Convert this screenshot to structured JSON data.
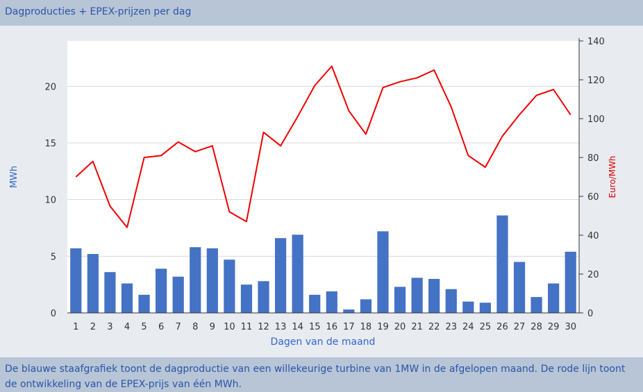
{
  "header": {
    "title": "Dagproducties + EPEX-prijzen per dag"
  },
  "footer": {
    "text": "De blauwe staafgrafiek toont de dagproductie van een willekeurige turbine van 1MW in de afgelopen maand. De rode lijn toont de ontwikkeling van de EPEX-prijs van één MWh."
  },
  "colors": {
    "bar": "#4472c4",
    "line": "#ee0000",
    "header_bg": "#b7c5d6",
    "panel_bg": "#e8ebf0",
    "left_axis_label": "#3366cc",
    "right_axis_label": "#dd0000"
  },
  "chart_data": {
    "type": "bar",
    "categories": [
      "1",
      "2",
      "3",
      "4",
      "5",
      "6",
      "7",
      "8",
      "9",
      "10",
      "11",
      "12",
      "13",
      "14",
      "15",
      "16",
      "17",
      "18",
      "19",
      "20",
      "21",
      "22",
      "23",
      "24",
      "25",
      "26",
      "27",
      "28",
      "29",
      "30"
    ],
    "xlabel": "Dagen van de maand",
    "ylabel": "MWh",
    "y2label": "Euro/MWh",
    "ylim": [
      0,
      24
    ],
    "y2lim": [
      0,
      140
    ],
    "yticks": [
      0,
      5,
      10,
      15,
      20
    ],
    "y2ticks": [
      0,
      20,
      40,
      60,
      80,
      100,
      120,
      140
    ],
    "grid": true,
    "series": [
      {
        "type": "bar",
        "axis": "left",
        "values": [
          5.7,
          5.2,
          3.6,
          2.6,
          1.6,
          3.9,
          3.2,
          5.8,
          5.7,
          4.7,
          2.5,
          2.8,
          6.6,
          6.9,
          1.6,
          1.9,
          0.3,
          1.2,
          7.2,
          2.3,
          3.1,
          3.0,
          2.1,
          1.0,
          0.9,
          8.6,
          4.5,
          1.4,
          2.6,
          5.4
        ]
      },
      {
        "type": "line",
        "axis": "right",
        "values": [
          70,
          78,
          55,
          44,
          80,
          81,
          88,
          83,
          86,
          52,
          47,
          93,
          86,
          101,
          117,
          127,
          104,
          92,
          116,
          119,
          121,
          125,
          106,
          81,
          75,
          91,
          102,
          112,
          115,
          102
        ]
      }
    ]
  }
}
